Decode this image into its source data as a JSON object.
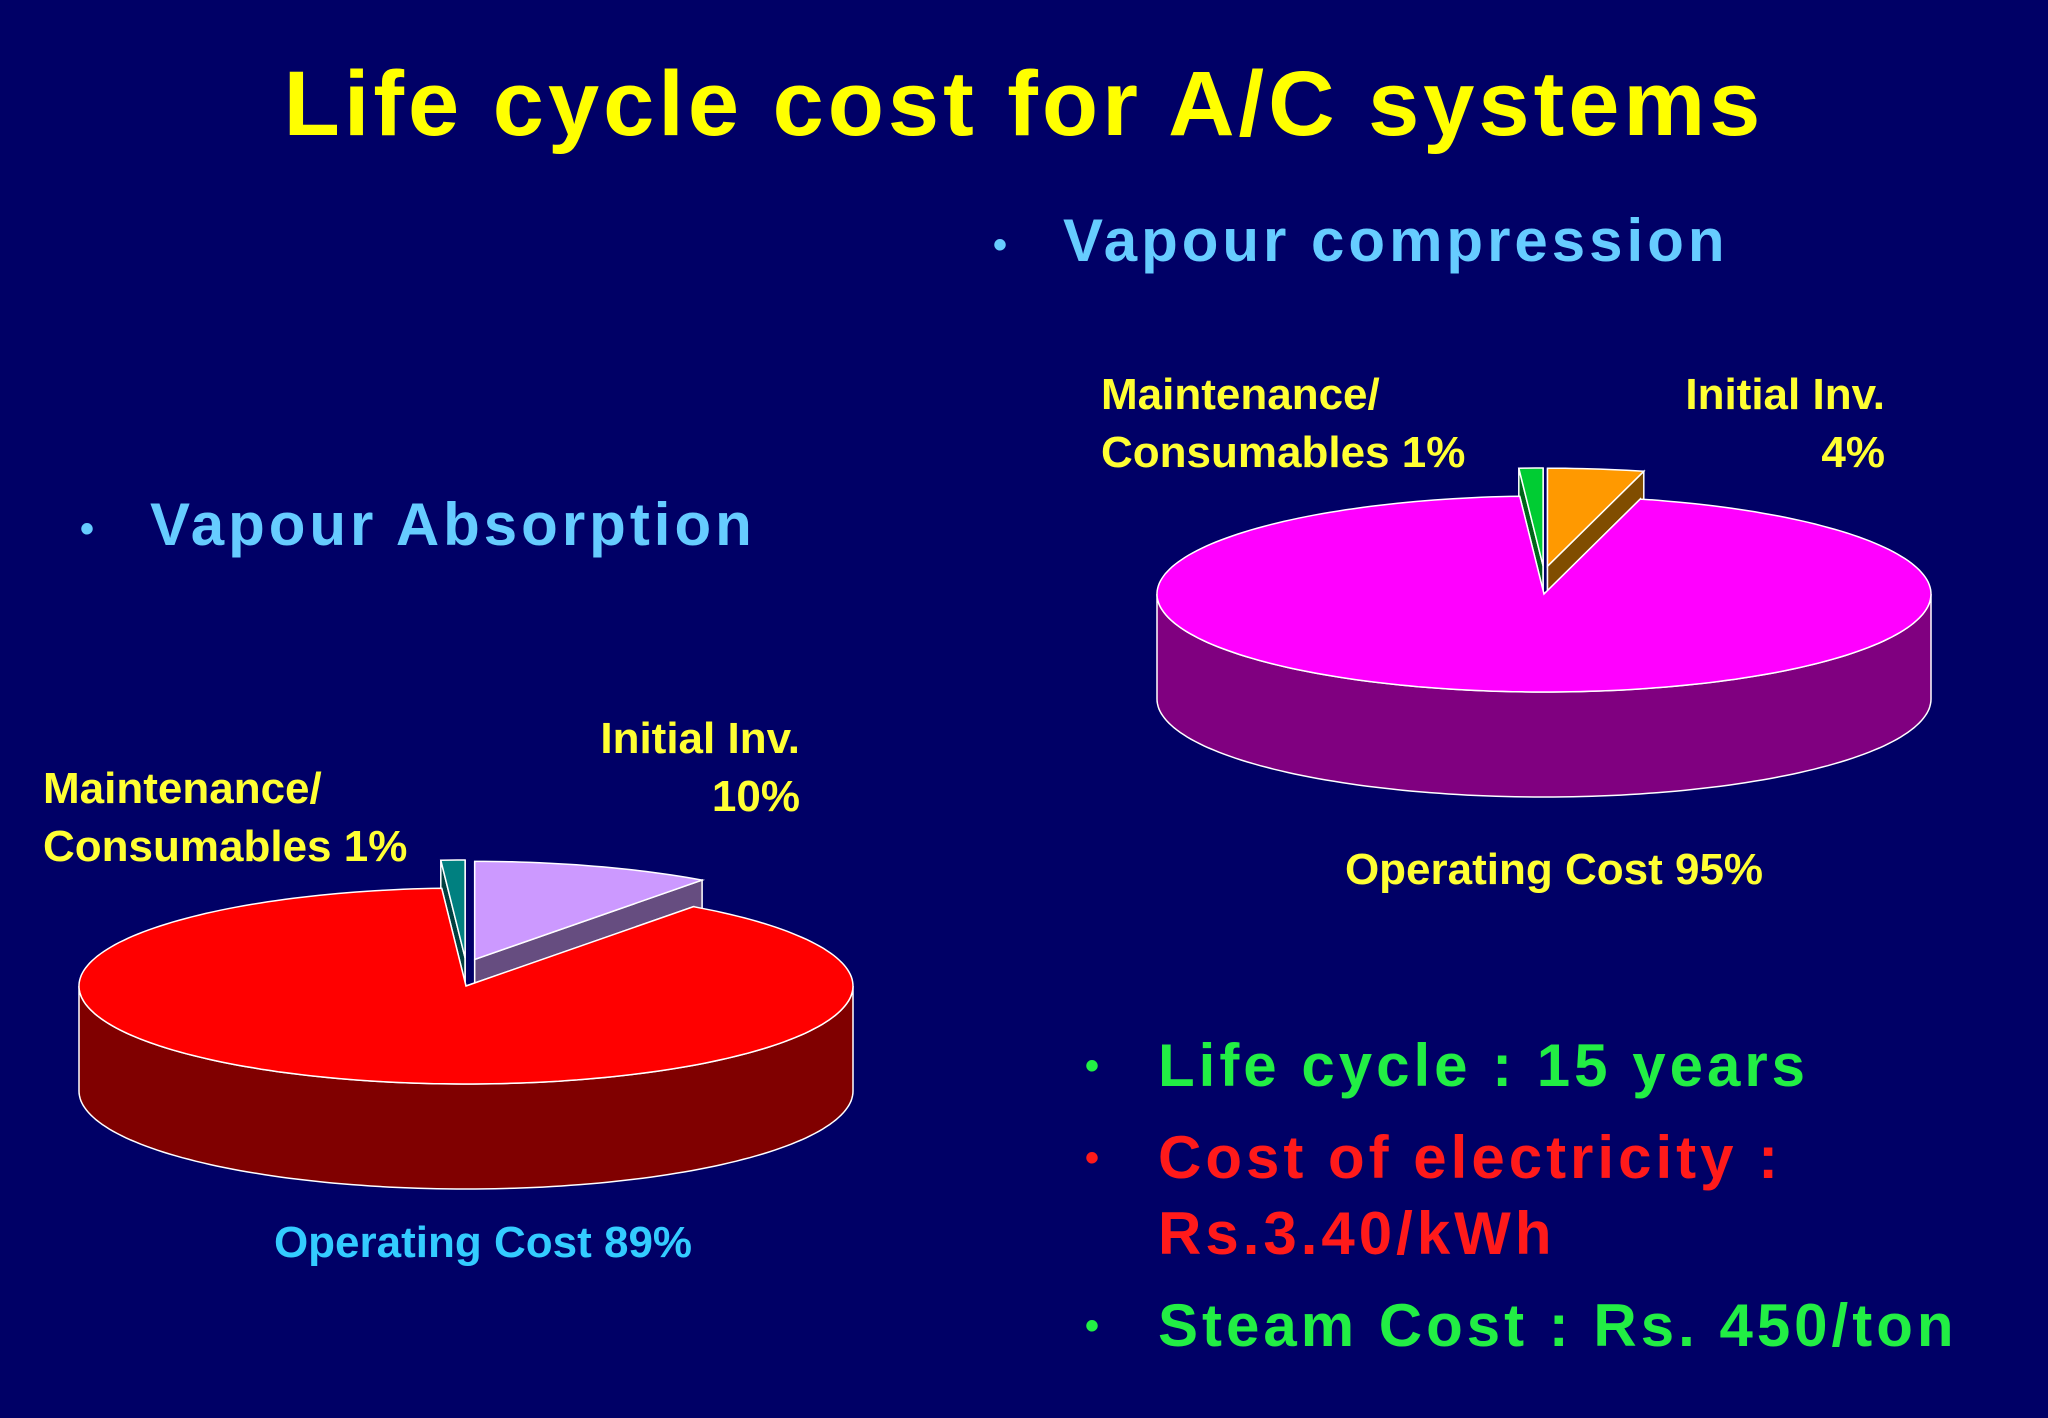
{
  "title": "Life cycle cost for A/C systems",
  "chart_data": [
    {
      "type": "pie",
      "title": "Vapour Absorption",
      "categories": [
        "Initial Inv.",
        "Operating Cost",
        "Maintenance/ Consumables"
      ],
      "values": [
        10,
        89,
        1
      ],
      "value_labels": [
        "10%",
        "89%",
        "1%"
      ],
      "colors": [
        "#cc99ff",
        "#ff0000",
        "#008080"
      ],
      "exploded": [
        true,
        false,
        true
      ]
    },
    {
      "type": "pie",
      "title": "Vapour compression",
      "categories": [
        "Initial Inv.",
        "Operating Cost",
        "Maintenance/ Consumables"
      ],
      "values": [
        4,
        95,
        1
      ],
      "value_labels": [
        "4%",
        "95%",
        "1%"
      ],
      "colors": [
        "#ff9900",
        "#ff00ff",
        "#00cc33"
      ],
      "exploded": [
        true,
        false,
        true
      ]
    }
  ],
  "notes": [
    {
      "text": "Life cycle : 15 years",
      "color": "#22ee44"
    },
    {
      "text": "Cost of electricity : Rs.3.40/kWh",
      "color": "#ff1a1a"
    },
    {
      "text": "Steam Cost : Rs. 450/ton",
      "color": "#22ee44"
    }
  ]
}
